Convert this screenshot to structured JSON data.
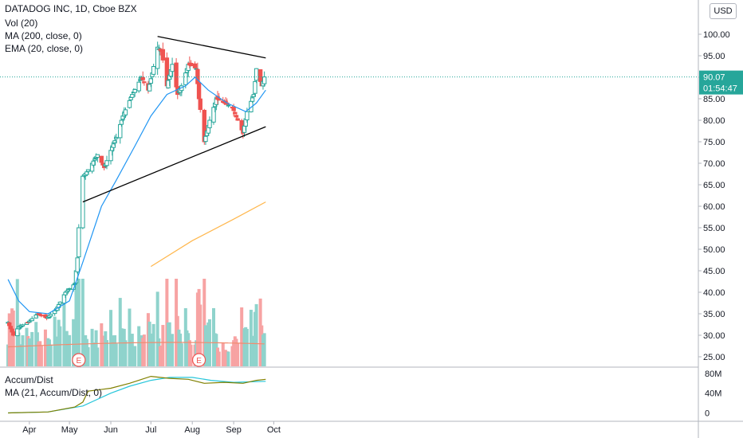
{
  "header": {
    "title": "DATADOG INC, 1D, Cboe BZX",
    "currency": "USD",
    "indicators": [
      "Vol (20)",
      "MA (200, close, 0)",
      "EMA (20, close, 0)"
    ]
  },
  "price_badge": {
    "price": "90.07",
    "countdown": "01:54:47"
  },
  "lower_pane": {
    "indicators": [
      "Accum/Dist",
      "MA (21, Accum/Dist, 0)"
    ]
  },
  "colors": {
    "up": "#26a69a",
    "down": "#ef5350",
    "vol_up": "#8fd3cc",
    "vol_down": "#f7a3a3",
    "ema": "#2196f3",
    "ma200": "#ffb74d",
    "vol_ma": "#f28b6e",
    "ad": "#808000",
    "ad_ma": "#26c6da",
    "trendline": "#000000",
    "price_line": "#26a69a"
  },
  "chart_data": [
    {
      "type": "candlestick",
      "title": "DATADOG INC, 1D, Cboe BZX",
      "x_ticks": [
        "Apr",
        "May",
        "Jun",
        "Jul",
        "Aug",
        "Sep",
        "Oct"
      ],
      "y_ticks": [
        "100.00",
        "95.00",
        "90.00",
        "85.00",
        "80.00",
        "75.00",
        "70.00",
        "65.00",
        "60.00",
        "55.00",
        "50.00",
        "45.00",
        "40.00",
        "35.00",
        "30.00",
        "25.00"
      ],
      "ylim": [
        22.5,
        103
      ],
      "last_price": 90.07,
      "earnings_markers": [
        "E",
        "E"
      ],
      "price_anchors": [
        [
          "2020-03-16",
          33
        ],
        [
          "2020-03-20",
          30
        ],
        [
          "2020-03-24",
          32
        ],
        [
          "2020-03-31",
          33
        ],
        [
          "2020-04-07",
          35
        ],
        [
          "2020-04-14",
          34
        ],
        [
          "2020-04-21",
          36
        ],
        [
          "2020-04-28",
          40
        ],
        [
          "2020-05-05",
          42
        ],
        [
          "2020-05-07",
          48
        ],
        [
          "2020-05-08",
          55
        ],
        [
          "2020-05-11",
          67
        ],
        [
          "2020-05-14",
          68
        ],
        [
          "2020-05-18",
          70
        ],
        [
          "2020-05-22",
          72
        ],
        [
          "2020-05-27",
          69
        ],
        [
          "2020-06-01",
          73
        ],
        [
          "2020-06-05",
          76
        ],
        [
          "2020-06-10",
          81
        ],
        [
          "2020-06-17",
          86
        ],
        [
          "2020-06-24",
          90
        ],
        [
          "2020-06-29",
          87
        ],
        [
          "2020-07-02",
          91
        ],
        [
          "2020-07-06",
          97
        ],
        [
          "2020-07-09",
          96
        ],
        [
          "2020-07-13",
          88
        ],
        [
          "2020-07-17",
          93
        ],
        [
          "2020-07-21",
          86
        ],
        [
          "2020-07-24",
          88
        ],
        [
          "2020-07-29",
          93
        ],
        [
          "2020-08-04",
          92
        ],
        [
          "2020-08-06",
          85
        ],
        [
          "2020-08-10",
          75
        ],
        [
          "2020-08-14",
          80
        ],
        [
          "2020-08-19",
          85
        ],
        [
          "2020-08-25",
          84
        ],
        [
          "2020-08-31",
          83
        ],
        [
          "2020-09-04",
          80
        ],
        [
          "2020-09-08",
          77
        ],
        [
          "2020-09-11",
          82
        ],
        [
          "2020-09-16",
          86
        ],
        [
          "2020-09-18",
          92
        ],
        [
          "2020-09-22",
          88
        ],
        [
          "2020-09-24",
          90.07
        ]
      ],
      "trendlines": [
        {
          "name": "upper",
          "from": [
            "2020-07-06",
            99.5
          ],
          "to": [
            "2020-09-25",
            94.5
          ]
        },
        {
          "name": "lower",
          "from": [
            "2020-05-11",
            61.0
          ],
          "to": [
            "2020-09-25",
            78.5
          ]
        }
      ],
      "series": [
        {
          "name": "EMA (20, close, 0)",
          "points": [
            [
              "2020-03-16",
              43
            ],
            [
              "2020-03-24",
              38
            ],
            [
              "2020-04-01",
              35.5
            ],
            [
              "2020-04-15",
              35
            ],
            [
              "2020-05-01",
              38
            ],
            [
              "2020-05-11",
              47
            ],
            [
              "2020-05-25",
              60
            ],
            [
              "2020-06-05",
              66
            ],
            [
              "2020-06-19",
              74
            ],
            [
              "2020-07-01",
              81
            ],
            [
              "2020-07-13",
              86
            ],
            [
              "2020-07-27",
              88
            ],
            [
              "2020-08-03",
              90
            ],
            [
              "2020-08-13",
              87
            ],
            [
              "2020-08-27",
              84
            ],
            [
              "2020-09-10",
              82
            ],
            [
              "2020-09-18",
              84
            ],
            [
              "2020-09-25",
              87
            ]
          ]
        },
        {
          "name": "MA (200, close, 0)",
          "points": [
            [
              "2020-07-01",
              46
            ],
            [
              "2020-08-01",
              52
            ],
            [
              "2020-09-01",
              57
            ],
            [
              "2020-09-25",
              61
            ]
          ]
        }
      ]
    },
    {
      "type": "line",
      "title": "Accum/Dist",
      "y_ticks": [
        "80M",
        "40M",
        "0"
      ],
      "ylim": [
        -4,
        85
      ],
      "series": [
        {
          "name": "Accum/Dist",
          "points": [
            [
              "2020-03-16",
              0
            ],
            [
              "2020-04-15",
              2
            ],
            [
              "2020-05-05",
              12
            ],
            [
              "2020-05-11",
              22
            ],
            [
              "2020-05-15",
              44
            ],
            [
              "2020-06-01",
              50
            ],
            [
              "2020-06-15",
              60
            ],
            [
              "2020-07-01",
              74
            ],
            [
              "2020-07-15",
              70
            ],
            [
              "2020-07-29",
              68
            ],
            [
              "2020-08-10",
              60
            ],
            [
              "2020-08-25",
              62
            ],
            [
              "2020-09-08",
              60
            ],
            [
              "2020-09-18",
              66
            ],
            [
              "2020-09-25",
              68
            ]
          ]
        },
        {
          "name": "MA (21, Accum/Dist, 0)",
          "points": [
            [
              "2020-03-16",
              0
            ],
            [
              "2020-04-15",
              2
            ],
            [
              "2020-05-11",
              14
            ],
            [
              "2020-06-01",
              40
            ],
            [
              "2020-06-15",
              54
            ],
            [
              "2020-07-01",
              66
            ],
            [
              "2020-07-15",
              72
            ],
            [
              "2020-08-01",
              72
            ],
            [
              "2020-08-15",
              66
            ],
            [
              "2020-09-01",
              62
            ],
            [
              "2020-09-25",
              64
            ]
          ]
        }
      ]
    }
  ]
}
